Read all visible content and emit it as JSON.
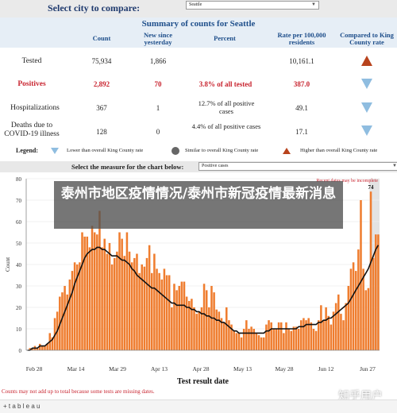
{
  "city_selector": {
    "label": "Select city to compare:",
    "value": "Seattle"
  },
  "summary": {
    "title": "Summary of counts for Seattle",
    "headers": [
      "Count",
      "New since yesterday",
      "Percent",
      "Rate per 100,000 residents",
      "Compared to King County rate"
    ],
    "rows": [
      {
        "label": "Tested",
        "count": "75,934",
        "new": "1,866",
        "percent": "",
        "rate": "10,161.1",
        "compare": "higher",
        "highlight": false
      },
      {
        "label": "Positives",
        "count": "2,892",
        "new": "70",
        "percent": "3.8% of all tested",
        "rate": "387.0",
        "compare": "lower",
        "highlight": true
      },
      {
        "label": "Hospitalizations",
        "count": "367",
        "new": "1",
        "percent": "12.7% of all positive cases",
        "rate": "49.1",
        "compare": "lower",
        "highlight": false
      },
      {
        "label": "Deaths due to COVID-19 illness",
        "count": "128",
        "new": "0",
        "percent": "4.4% of all positive cases",
        "rate": "17.1",
        "compare": "lower",
        "highlight": false
      }
    ]
  },
  "legend": {
    "label": "Legend:",
    "lower": "Lower than overall King County rate",
    "similar": "Similar to overall King County rate",
    "higher": "Higher than overall King County rate"
  },
  "measure_selector": {
    "label": "Select the measure for the chart below:",
    "value": "Positive cases"
  },
  "overlay_text": "泰州市地区疫情情况/泰州市新冠疫情最新消息",
  "chart_data": {
    "type": "bar",
    "xlabel": "Test result date",
    "ylabel": "Count",
    "ylim": [
      0,
      80
    ],
    "yticks": [
      0,
      10,
      20,
      30,
      40,
      50,
      60,
      70,
      80
    ],
    "xtick_labels": [
      "Feb 28",
      "Mar 14",
      "Mar 29",
      "Apr 13",
      "Apr 28",
      "May 13",
      "May 28",
      "Jun 12",
      "Jun 27"
    ],
    "annotation": "Recent dates may be incomplete",
    "peak_label": "74",
    "values": [
      0,
      1,
      1,
      2,
      1,
      3,
      2,
      2,
      3,
      8,
      6,
      15,
      18,
      25,
      27,
      30,
      26,
      33,
      37,
      41,
      40,
      41,
      55,
      53,
      53,
      48,
      58,
      55,
      54,
      65,
      48,
      52,
      45,
      50,
      40,
      43,
      46,
      55,
      52,
      44,
      55,
      46,
      41,
      43,
      45,
      36,
      40,
      39,
      43,
      49,
      36,
      45,
      38,
      36,
      33,
      38,
      35,
      35,
      20,
      31,
      28,
      30,
      32,
      32,
      25,
      23,
      24,
      20,
      17,
      18,
      20,
      31,
      28,
      20,
      30,
      27,
      19,
      18,
      15,
      13,
      20,
      14,
      12,
      9,
      8,
      8,
      6,
      10,
      14,
      10,
      11,
      10,
      8,
      7,
      6,
      6,
      12,
      14,
      13,
      10,
      10,
      13,
      13,
      8,
      13,
      10,
      9,
      11,
      11,
      10,
      14,
      15,
      14,
      15,
      13,
      10,
      9,
      14,
      21,
      14,
      20,
      16,
      12,
      18,
      22,
      26,
      17,
      14,
      22,
      30,
      38,
      41,
      37,
      47,
      70,
      38,
      28,
      29,
      74,
      43,
      54,
      54
    ],
    "moving_average": [
      0,
      0,
      1,
      1,
      1,
      2,
      2,
      2,
      3,
      4,
      5,
      7,
      9,
      12,
      15,
      18,
      21,
      24,
      27,
      31,
      34,
      37,
      40,
      43,
      45,
      46,
      47,
      47,
      48,
      48,
      47,
      47,
      46,
      45,
      44,
      44,
      44,
      43,
      42,
      42,
      41,
      40,
      38,
      37,
      35,
      34,
      33,
      32,
      31,
      30,
      29,
      29,
      28,
      27,
      26,
      25,
      24,
      23,
      22,
      22,
      21,
      21,
      21,
      21,
      20,
      20,
      19,
      19,
      18,
      18,
      17,
      17,
      16,
      16,
      15,
      15,
      14,
      14,
      13,
      13,
      12,
      11,
      10,
      9,
      9,
      8,
      8,
      8,
      8,
      8,
      8,
      8,
      8,
      8,
      8,
      8,
      9,
      9,
      10,
      10,
      10,
      10,
      10,
      10,
      10,
      10,
      10,
      10,
      10,
      11,
      11,
      11,
      12,
      12,
      12,
      12,
      12,
      13,
      13,
      14,
      14,
      15,
      15,
      16,
      17,
      18,
      19,
      20,
      21,
      22,
      24,
      26,
      28,
      30,
      32,
      34,
      36,
      38,
      41,
      44,
      47,
      49
    ],
    "recent_from_index": 138
  },
  "footer_note": "Counts may not add up to total because some tests are missing dates.",
  "tableau_logo": "+ t a b l e a u",
  "watermark": "知乎用户",
  "colors": {
    "bar": "#ef7d2f",
    "line": "#111111",
    "header_blue": "#1f4f8b",
    "red": "#c8242f",
    "higher": "#b8431d",
    "lower": "#8fbde0",
    "similar": "#666666"
  }
}
